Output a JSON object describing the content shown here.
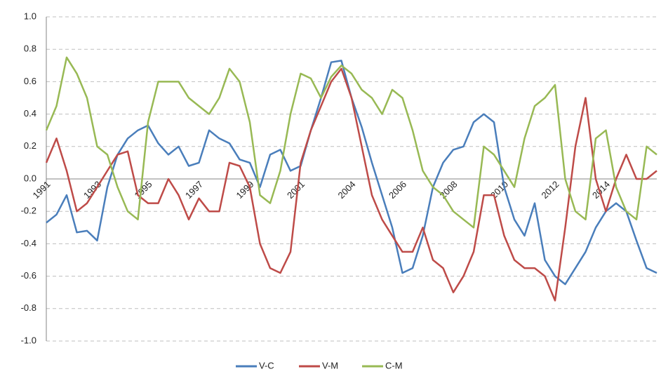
{
  "chart_data": {
    "type": "line",
    "x": [
      "1991",
      null,
      null,
      null,
      null,
      "1993",
      null,
      null,
      null,
      null,
      "1995",
      null,
      null,
      null,
      null,
      "1997",
      null,
      null,
      null,
      null,
      "1999",
      null,
      null,
      null,
      null,
      "2001",
      null,
      null,
      null,
      null,
      "2004",
      null,
      null,
      null,
      null,
      "2006",
      null,
      null,
      null,
      null,
      "2008",
      null,
      null,
      null,
      null,
      "2010",
      null,
      null,
      null,
      null,
      "2012",
      null,
      null,
      null,
      null,
      "2014",
      null,
      null,
      null,
      null,
      null
    ],
    "series": [
      {
        "name": "V-C",
        "color": "#4a7ebb",
        "values": [
          -0.27,
          -0.22,
          -0.1,
          -0.33,
          -0.32,
          -0.38,
          -0.05,
          0.15,
          0.25,
          0.3,
          0.33,
          0.22,
          0.15,
          0.2,
          0.08,
          0.1,
          0.3,
          0.25,
          0.22,
          0.12,
          0.1,
          -0.05,
          0.15,
          0.18,
          0.05,
          0.08,
          0.3,
          0.5,
          0.72,
          0.73,
          0.5,
          0.32,
          0.1,
          -0.1,
          -0.3,
          -0.58,
          -0.55,
          -0.35,
          -0.05,
          0.1,
          0.18,
          0.2,
          0.35,
          0.4,
          0.35,
          -0.05,
          -0.25,
          -0.35,
          -0.15,
          -0.5,
          -0.6,
          -0.65,
          -0.55,
          -0.45,
          -0.3,
          -0.2,
          -0.15,
          -0.2,
          -0.38,
          -0.55,
          -0.58
        ]
      },
      {
        "name": "V-M",
        "color": "#be4b48",
        "values": [
          0.1,
          0.25,
          0.05,
          -0.2,
          -0.15,
          -0.05,
          0.05,
          0.15,
          0.17,
          -0.1,
          -0.15,
          -0.15,
          0.0,
          -0.1,
          -0.25,
          -0.12,
          -0.2,
          -0.2,
          0.1,
          0.08,
          -0.05,
          -0.4,
          -0.55,
          -0.58,
          -0.45,
          0.1,
          0.3,
          0.45,
          0.6,
          0.68,
          0.5,
          0.2,
          -0.1,
          -0.25,
          -0.35,
          -0.45,
          -0.45,
          -0.3,
          -0.5,
          -0.55,
          -0.7,
          -0.6,
          -0.45,
          -0.1,
          -0.1,
          -0.35,
          -0.5,
          -0.55,
          -0.55,
          -0.6,
          -0.75,
          -0.3,
          0.2,
          0.5,
          0.0,
          -0.2,
          0.0,
          0.15,
          0.0,
          0.0,
          0.05
        ]
      },
      {
        "name": "C-M",
        "color": "#98b954",
        "values": [
          0.3,
          0.45,
          0.75,
          0.65,
          0.5,
          0.2,
          0.15,
          -0.05,
          -0.2,
          -0.25,
          0.35,
          0.6,
          0.6,
          0.6,
          0.5,
          0.45,
          0.4,
          0.5,
          0.68,
          0.6,
          0.35,
          -0.1,
          -0.15,
          0.05,
          0.4,
          0.65,
          0.62,
          0.5,
          0.63,
          0.7,
          0.65,
          0.55,
          0.5,
          0.4,
          0.55,
          0.5,
          0.3,
          0.05,
          -0.05,
          -0.1,
          -0.2,
          -0.25,
          -0.3,
          0.2,
          0.15,
          0.05,
          -0.05,
          0.25,
          0.45,
          0.5,
          0.58,
          0.0,
          -0.2,
          -0.25,
          0.25,
          0.3,
          -0.05,
          -0.2,
          -0.25,
          0.2,
          0.15
        ]
      }
    ],
    "ylim": [
      -1,
      1
    ],
    "yticks": [
      {
        "value": -1,
        "label": "-1.0"
      },
      -0.8,
      -0.6,
      -0.4,
      -0.2,
      {
        "value": 0,
        "label": "0.0"
      },
      0.2,
      0.4,
      0.6,
      0.8,
      {
        "value": 1,
        "label": "1.0"
      }
    ],
    "grid": true,
    "negative_tick_label_color": "#ff0000",
    "legend": "bottom"
  }
}
